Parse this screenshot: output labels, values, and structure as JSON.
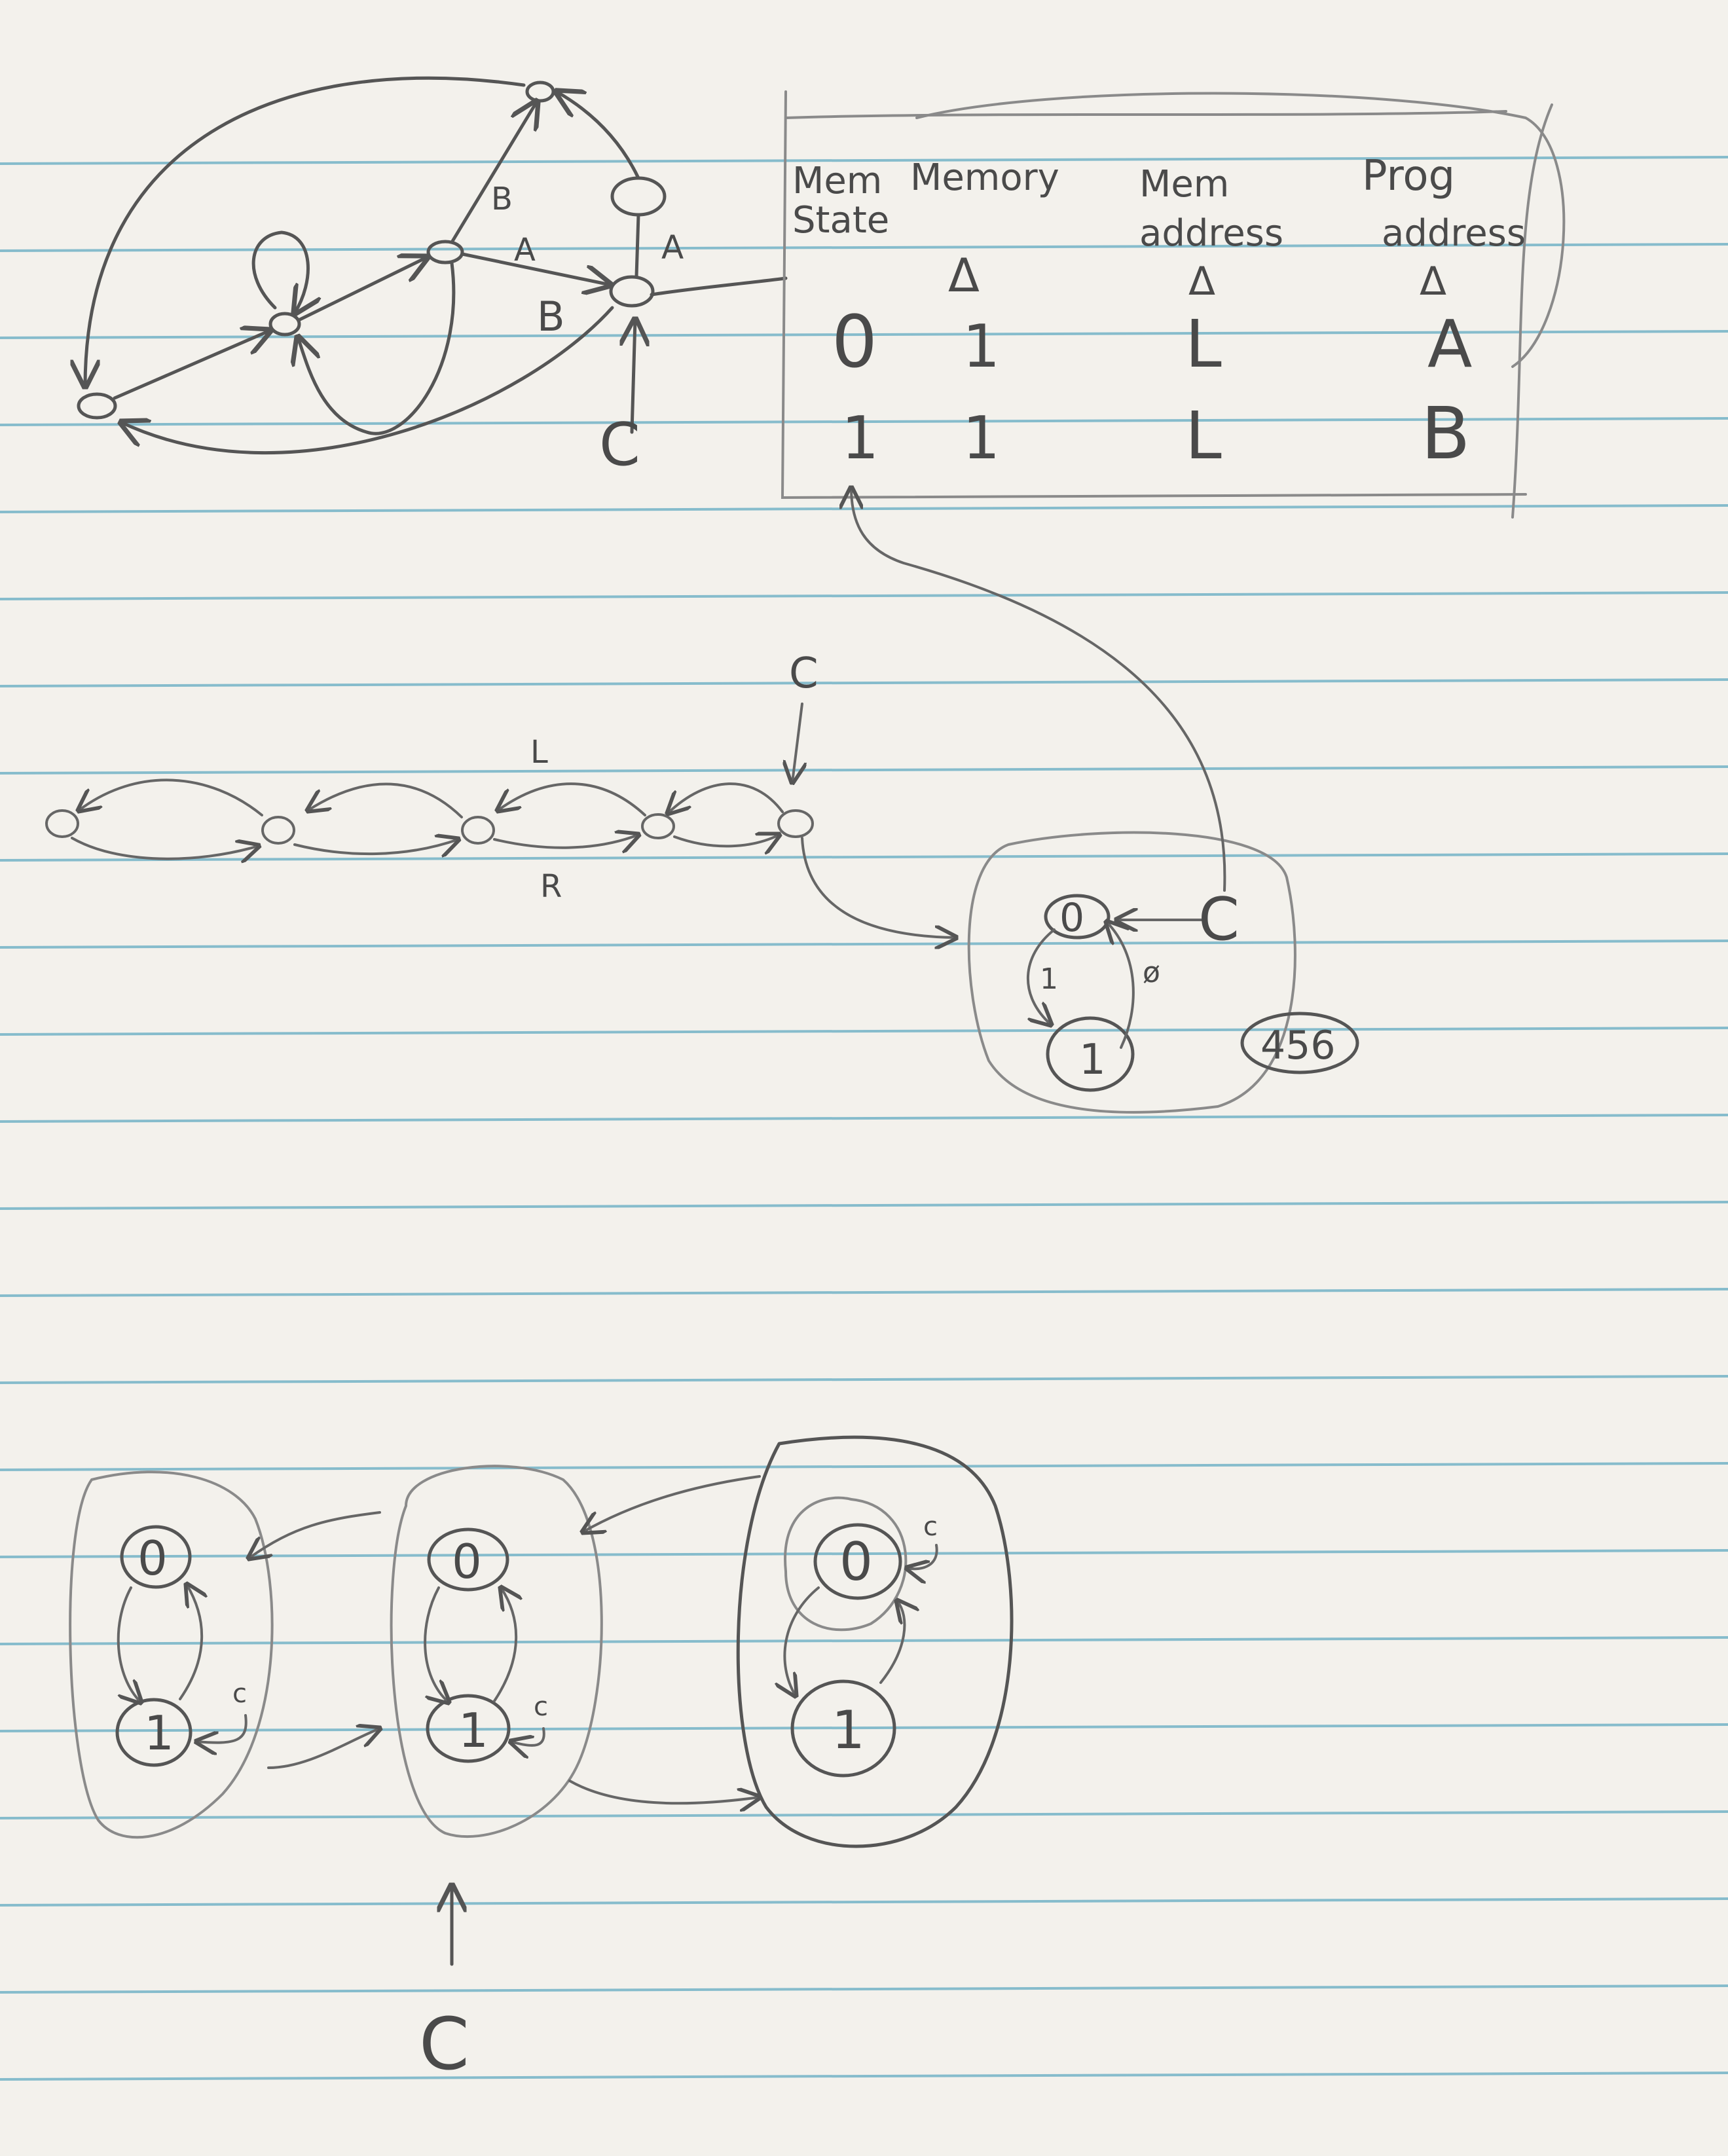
{
  "top_graph": {
    "edge_labels": [
      "B",
      "A",
      "B",
      "A"
    ],
    "pointer": "C"
  },
  "table": {
    "headers": [
      {
        "line1": "Mem",
        "line2": "State"
      },
      {
        "line1": "Memory",
        "line2": ""
      },
      {
        "line1": "Mem",
        "line2": "address"
      },
      {
        "line1": "Prog",
        "line2": "address"
      }
    ],
    "delta_symbol": "Δ",
    "rows": [
      [
        "0",
        "1",
        "L",
        "A"
      ],
      [
        "1",
        "1",
        "L",
        "B"
      ]
    ]
  },
  "tape": {
    "pointer": "C",
    "left_label": "L",
    "right_label": "R"
  },
  "cell_machine": {
    "states": [
      "0",
      "1"
    ],
    "pointer": "C",
    "edge_labels": [
      "1",
      "ø"
    ],
    "badge": "456"
  },
  "bottom_chain": {
    "machines": [
      {
        "states": [
          "0",
          "1"
        ],
        "pointer": "c"
      },
      {
        "states": [
          "0",
          "1"
        ],
        "pointer": "c"
      },
      {
        "states": [
          "0",
          "1"
        ],
        "pointer": "c"
      }
    ],
    "pointer": "C"
  }
}
